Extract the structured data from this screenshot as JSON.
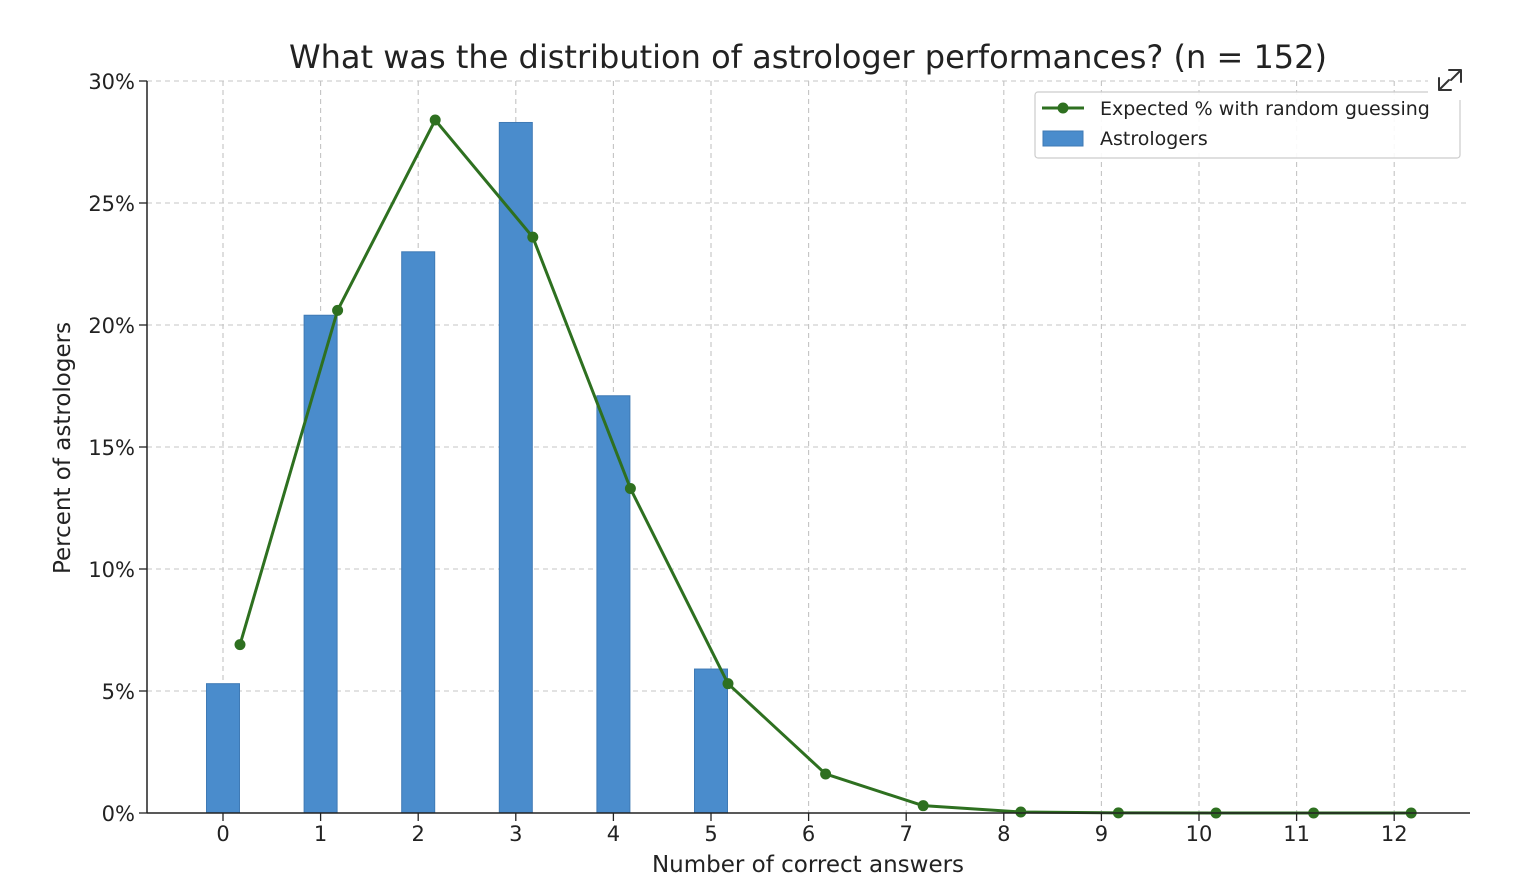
{
  "chart_data": {
    "type": "bar",
    "title": "What was the distribution of astrologer performances? (n = 152)",
    "xlabel": "Number of correct answers",
    "ylabel": "Percent of astrologers",
    "categories": [
      "0",
      "1",
      "2",
      "3",
      "4",
      "5",
      "6",
      "7",
      "8",
      "9",
      "10",
      "11",
      "12"
    ],
    "ylim": [
      0,
      30
    ],
    "yticks": [
      "0%",
      "5%",
      "10%",
      "15%",
      "20%",
      "25%",
      "30%"
    ],
    "grid": true,
    "legend_position": "top-right",
    "series": [
      {
        "name": "Astrologers",
        "type": "bar",
        "color": "#4a8ccc",
        "values": [
          5.3,
          20.4,
          23.0,
          28.3,
          17.1,
          5.9,
          0,
          0,
          0,
          0,
          0,
          0,
          0
        ]
      },
      {
        "name": "Expected % with random guessing",
        "type": "line",
        "color": "#2e7020",
        "values": [
          6.9,
          20.6,
          28.4,
          23.6,
          13.3,
          5.3,
          1.6,
          0.3,
          0.04,
          0.005,
          0.0003,
          1e-05,
          3e-07
        ]
      }
    ]
  },
  "icons": {
    "expand": "expand-icon"
  }
}
